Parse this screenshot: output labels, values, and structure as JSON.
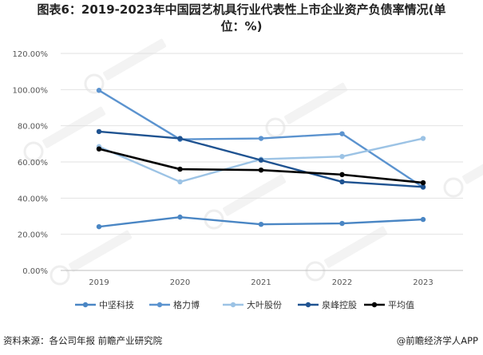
{
  "header": {
    "title_line1": "图表6：2019-2023年中国园艺机具行业代表性上市企业资产负债率情况(单",
    "title_line2": "位：%)"
  },
  "footer": {
    "source": "资料来源：各公司年报 前瞻产业研究院",
    "brand": "@前瞻经济学人APP"
  },
  "chart_data": {
    "type": "line",
    "x": [
      "2019",
      "2020",
      "2021",
      "2022",
      "2023"
    ],
    "ylim": [
      0,
      120
    ],
    "ytick_labels": [
      "0.00%",
      "20.00%",
      "40.00%",
      "60.00%",
      "80.00%",
      "100.00%",
      "120.00%"
    ],
    "grid": true,
    "legend_placement": "bottom",
    "series": [
      {
        "name": "中坚科技",
        "color": "#4a86c4",
        "values": [
          24.2,
          29.5,
          25.5,
          26.0,
          28.2
        ]
      },
      {
        "name": "格力博",
        "color": "#5b93cf",
        "values": [
          99.6,
          72.5,
          73.0,
          75.6,
          46.0
        ]
      },
      {
        "name": "大叶股份",
        "color": "#9cc3e5",
        "values": [
          68.5,
          49.0,
          61.5,
          63.0,
          73.0
        ]
      },
      {
        "name": "泉峰控股",
        "color": "#1f5391",
        "values": [
          76.8,
          73.0,
          61.0,
          49.0,
          46.2
        ]
      },
      {
        "name": "平均值",
        "color": "#000000",
        "values": [
          67.2,
          56.0,
          55.5,
          53.0,
          48.5
        ]
      }
    ]
  }
}
